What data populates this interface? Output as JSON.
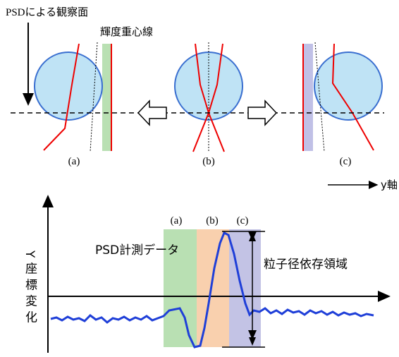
{
  "top": {
    "observation_plane": "PSDによる観察面",
    "centroid_line": "輝度重心線",
    "panel_labels": [
      "(a)",
      "(b)",
      "(c)"
    ],
    "y_axis": "y軸"
  },
  "bottom": {
    "y_label": "Y座標変化",
    "region_labels": [
      "(a)",
      "(b)",
      "(c)"
    ],
    "measurement": "PSD計測データ",
    "size_region": "粒子径依存領域"
  }
}
